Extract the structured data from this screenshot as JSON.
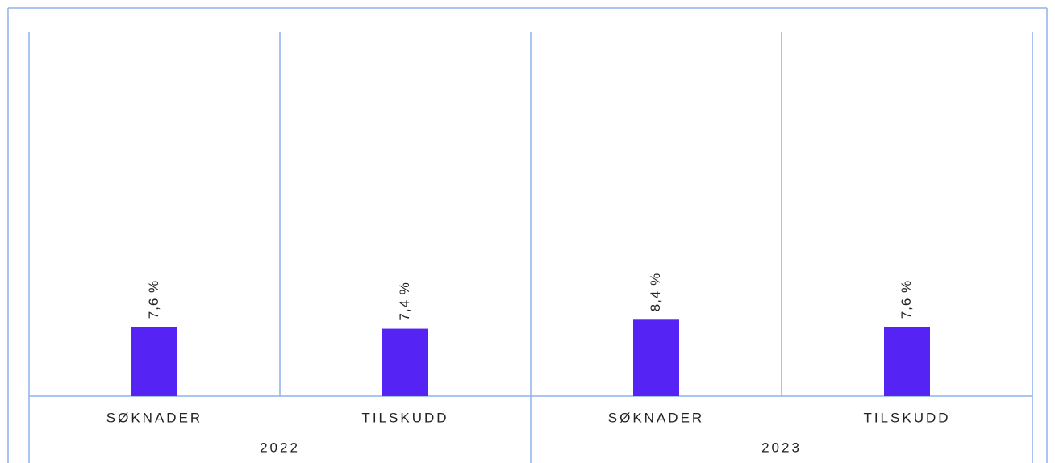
{
  "chart_data": {
    "type": "bar",
    "categories": [
      "SØKNADER",
      "TILSKUDD",
      "SØKNADER",
      "TILSKUDD"
    ],
    "groups": [
      "2022",
      "2023"
    ],
    "values": [
      7.6,
      7.4,
      8.4,
      7.6
    ],
    "value_labels": [
      "7,6 %",
      "7,4 %",
      "8,4 %",
      "7,6 %"
    ],
    "color": "#5524f4",
    "ylim": [
      0,
      40
    ]
  }
}
